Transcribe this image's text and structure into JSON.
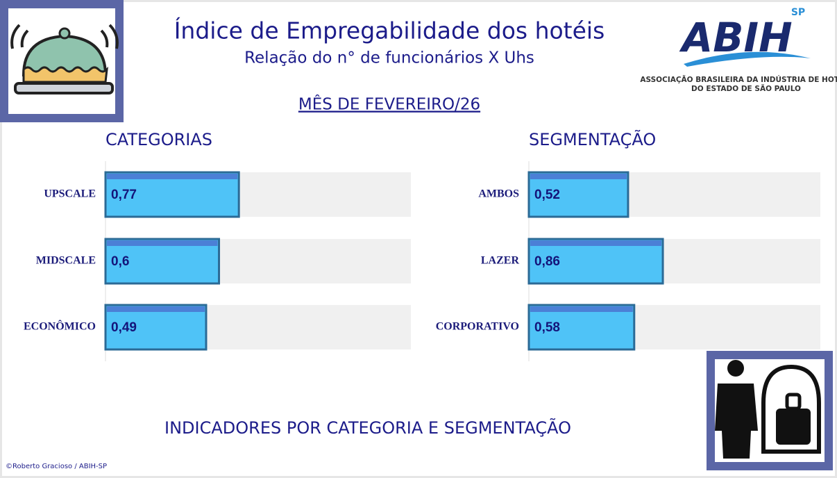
{
  "header": {
    "title": "Índice de Empregabilidade dos hotéis",
    "subtitle": "Relação do n° de funcionários X Uhs",
    "month": "MÊS DE FEVEREIRO/26"
  },
  "logo": {
    "name": "ABIH",
    "region": "SP",
    "line1": "ASSOCIAÇÃO BRASILEIRA DA INDÚSTRIA DE HOTÉIS",
    "line2": "DO ESTADO DE SÃO PAULO"
  },
  "chart_data": [
    {
      "type": "bar",
      "title": "CATEGORIAS",
      "categories": [
        "UPSCALE",
        "MIDSCALE",
        "ECONÔMICO"
      ],
      "values": [
        0.77,
        0.6,
        0.49
      ],
      "value_labels": [
        "0,77",
        "0,6",
        "0,49"
      ],
      "color": "#4fc3f7",
      "xlim": [
        -0.37,
        2.24
      ]
    },
    {
      "type": "bar",
      "title": "SEGMENTAÇÃO",
      "categories": [
        "AMBOS",
        "LAZER",
        "CORPORATIVO"
      ],
      "values": [
        0.52,
        0.86,
        0.58
      ],
      "value_labels": [
        "0,52",
        "0,86",
        "0,58"
      ],
      "color": "#4fc3f7",
      "xlim": [
        -0.45,
        2.4
      ]
    }
  ],
  "footer": "INDICADORES POR CATEGORIA E SEGMENTAÇÃO",
  "credit": "©Roberto Gracioso / ABIH-SP"
}
